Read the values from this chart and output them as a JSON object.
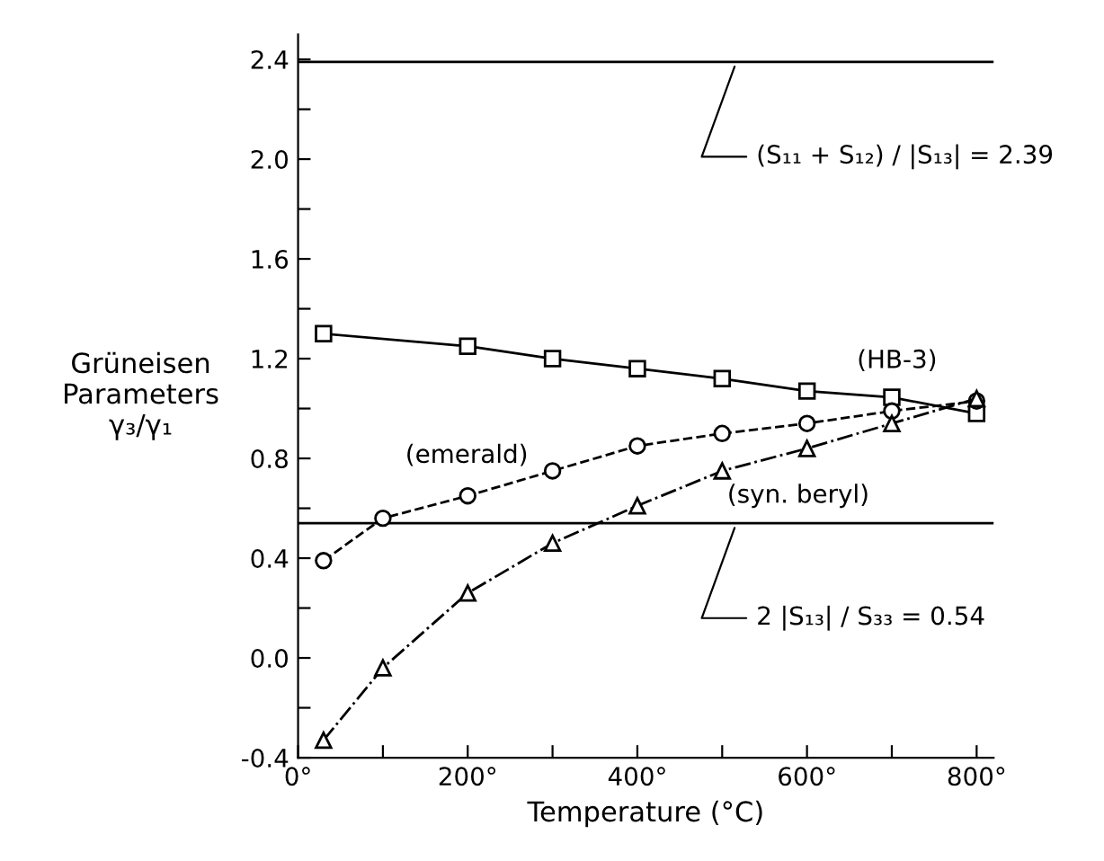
{
  "chart_data": {
    "type": "line",
    "xlabel": "Temperature (°C)",
    "ylabel": "Grüneisen\nParameters\nγ₃/γ₁",
    "x": [
      30,
      100,
      200,
      300,
      400,
      500,
      600,
      700,
      800
    ],
    "series": [
      {
        "name": "(HB-3)",
        "color": "#000000",
        "marker": "square",
        "line_style": "solid",
        "values": [
          1.3,
          null,
          1.25,
          1.2,
          1.16,
          1.12,
          1.07,
          1.045,
          0.98
        ]
      },
      {
        "name": "(emerald)",
        "color": "#000000",
        "marker": "circle",
        "line_style": "dashed",
        "values": [
          0.39,
          0.56,
          0.65,
          0.75,
          0.85,
          0.9,
          0.94,
          0.99,
          1.03
        ]
      },
      {
        "name": "(syn. beryl)",
        "color": "#000000",
        "marker": "triangle",
        "line_style": "dashdot",
        "values": [
          -0.33,
          -0.04,
          0.26,
          0.46,
          0.61,
          0.75,
          0.84,
          0.94,
          1.04
        ]
      }
    ],
    "xlim": [
      0,
      820
    ],
    "ylim": [
      -0.4,
      2.5
    ],
    "xticks": [
      {
        "value": 0,
        "label": "0°"
      },
      {
        "value": 100,
        "label": null
      },
      {
        "value": 200,
        "label": "200°"
      },
      {
        "value": 300,
        "label": null
      },
      {
        "value": 400,
        "label": "400°"
      },
      {
        "value": 500,
        "label": null
      },
      {
        "value": 600,
        "label": "600°"
      },
      {
        "value": 700,
        "label": null
      },
      {
        "value": 800,
        "label": "800°"
      }
    ],
    "yticks": [
      -0.4,
      {
        "value": -0.2,
        "label": null
      },
      {
        "value": 0.0,
        "label": "0.0"
      },
      {
        "value": 0.2,
        "label": null
      },
      0.4,
      {
        "value": 0.6,
        "label": null
      },
      0.8,
      {
        "value": 1.0,
        "label": null
      },
      1.2,
      {
        "value": 1.4,
        "label": null
      },
      1.6,
      {
        "value": 1.8,
        "label": null
      },
      {
        "value": 2.0,
        "label": "2.0"
      },
      {
        "value": 2.2,
        "label": null
      },
      2.4
    ],
    "ref_lines": [
      {
        "axis": "y",
        "value": 2.39,
        "label": "(S₁₁ + S₁₂) / |S₁₃| = 2.39",
        "color": "#000000"
      },
      {
        "axis": "y",
        "value": 0.54,
        "label": "2 |S₁₃| / S₃₃ = 0.54",
        "color": "#000000"
      }
    ],
    "grid": false,
    "legend": false
  }
}
